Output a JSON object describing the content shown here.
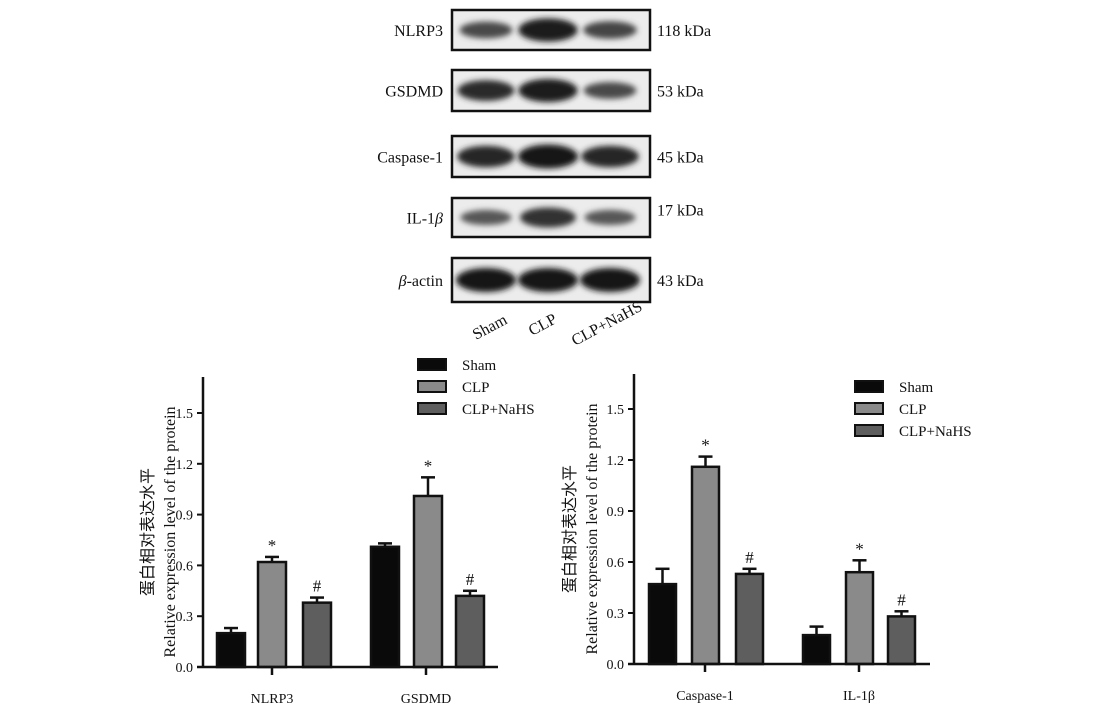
{
  "groups": [
    "Sham",
    "CLP",
    "CLP+NaHS"
  ],
  "colors": {
    "Sham": "#0a0a0a",
    "CLP": "#8a8a8a",
    "CLP+NaHS": "#5e5e5e"
  },
  "western_blot": {
    "rows": [
      {
        "label": "NLRP3",
        "italic_prefix": "",
        "kda": "118 kDa",
        "intensity": [
          0.55,
          0.95,
          0.6
        ]
      },
      {
        "label": "GSDMD",
        "italic_prefix": "",
        "kda": "53 kDa",
        "intensity": [
          0.8,
          0.95,
          0.55
        ]
      },
      {
        "label": "Caspase-1",
        "italic_prefix": "",
        "kda": "45 kDa",
        "intensity": [
          0.85,
          1.0,
          0.85
        ]
      },
      {
        "label": "IL-1",
        "italic_suffix": "β",
        "kda": "17 kDa",
        "intensity": [
          0.45,
          0.75,
          0.45
        ]
      },
      {
        "label": "-actin",
        "italic_prefix": "β",
        "kda": "43 kDa",
        "intensity": [
          1.0,
          1.0,
          1.0
        ]
      }
    ]
  },
  "chart_data": [
    {
      "type": "bar",
      "categories": [
        "NLRP3",
        "GSDMD"
      ],
      "ylabel_cn": "蛋白相对表达水平",
      "ylabel": "Relative expression level of the protein",
      "ylim": [
        0,
        1.7
      ],
      "yticks": [
        "0.0",
        "0.3",
        "0.6",
        "0.9",
        "1.2",
        "1.5"
      ],
      "legend": [
        "Sham",
        "CLP",
        "CLP+NaHS"
      ],
      "legend_position": "top-right",
      "series": [
        {
          "name": "Sham",
          "values": [
            0.2,
            0.71
          ],
          "errors": [
            0.03,
            0.02
          ],
          "marks": [
            "",
            ""
          ]
        },
        {
          "name": "CLP",
          "values": [
            0.62,
            1.01
          ],
          "errors": [
            0.03,
            0.11
          ],
          "marks": [
            "*",
            "*"
          ]
        },
        {
          "name": "CLP+NaHS",
          "values": [
            0.38,
            0.42
          ],
          "errors": [
            0.03,
            0.03
          ],
          "marks": [
            "#",
            "#"
          ]
        }
      ]
    },
    {
      "type": "bar",
      "categories": [
        "Caspase-1",
        "IL-1β"
      ],
      "ylabel_cn": "蛋白相对表达水平",
      "ylabel": "Relative expression level of the protein",
      "ylim": [
        0,
        1.7
      ],
      "yticks": [
        "0.0",
        "0.3",
        "0.6",
        "0.9",
        "1.2",
        "1.5"
      ],
      "legend": [
        "Sham",
        "CLP",
        "CLP+NaHS"
      ],
      "legend_position": "top-right",
      "series": [
        {
          "name": "Sham",
          "values": [
            0.47,
            0.17
          ],
          "errors": [
            0.09,
            0.05
          ],
          "marks": [
            "",
            ""
          ]
        },
        {
          "name": "CLP",
          "values": [
            1.16,
            0.54
          ],
          "errors": [
            0.06,
            0.07
          ],
          "marks": [
            "*",
            "*"
          ]
        },
        {
          "name": "CLP+NaHS",
          "values": [
            0.53,
            0.28
          ],
          "errors": [
            0.03,
            0.03
          ],
          "marks": [
            "#",
            "#"
          ]
        }
      ]
    }
  ]
}
